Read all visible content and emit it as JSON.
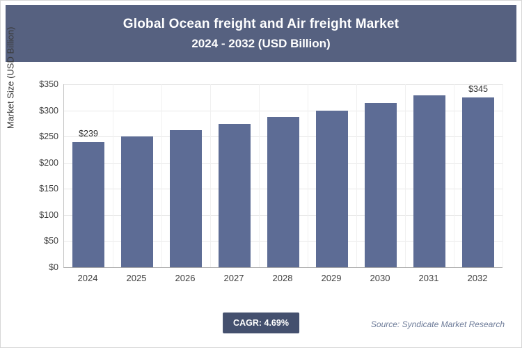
{
  "header": {
    "title_line1": "Global Ocean freight and Air freight Market",
    "title_line2": "2024 - 2032 (USD Billion)"
  },
  "chart_data": {
    "type": "bar",
    "title": "Global Ocean freight and Air freight Market 2024 - 2032 (USD Billion)",
    "categories": [
      "2024",
      "2025",
      "2026",
      "2027",
      "2028",
      "2029",
      "2030",
      "2031",
      "2032"
    ],
    "values": [
      239,
      250,
      262,
      274,
      287,
      300,
      314,
      329,
      345
    ],
    "bar_labels": [
      "$239",
      "",
      "",
      "",
      "",
      "",
      "",
      "",
      "$345"
    ],
    "xlabel": "",
    "ylabel": "Market Size (USD Billion)",
    "ylim": [
      0,
      350
    ],
    "ytick_step": 50,
    "ytick_labels": [
      "$0",
      "$50",
      "$100",
      "$150",
      "$200",
      "$250",
      "$300",
      "$350"
    ],
    "grid": true,
    "legend": "none",
    "bar_color": "#5D6C95"
  },
  "footer": {
    "cagr_label": "CAGR: 4.69%",
    "source": "Source: Syndicate Market Research"
  },
  "colors": {
    "header_bg": "#566180",
    "badge_bg": "#44506E",
    "bar": "#5D6C95"
  }
}
